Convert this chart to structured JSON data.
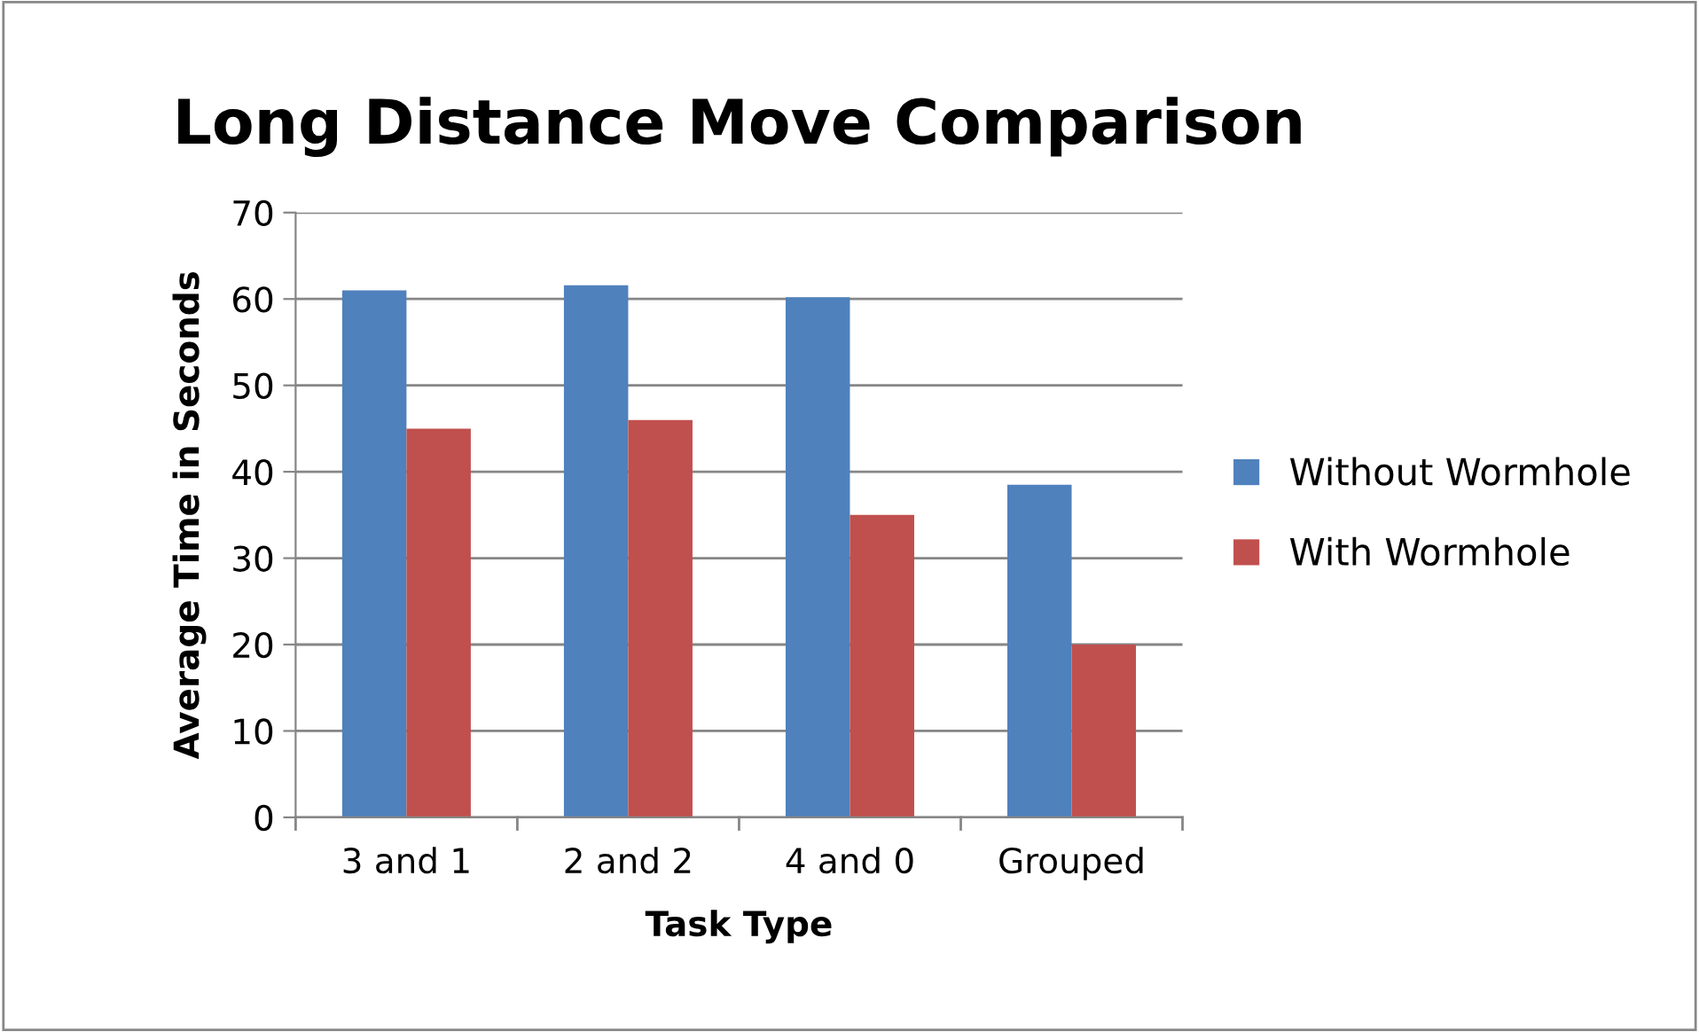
{
  "chart_data": {
    "type": "bar",
    "title": "Long Distance Move Comparison",
    "xlabel": "Task Type",
    "ylabel": "Average Time in Seconds",
    "categories": [
      "3 and 1",
      "2 and 2",
      "4 and 0",
      "Grouped"
    ],
    "series": [
      {
        "name": "Without Wormhole",
        "color": "#4f81bd",
        "values": [
          61,
          61.6,
          60.2,
          38.5
        ]
      },
      {
        "name": "With Wormhole",
        "color": "#c0504d",
        "values": [
          45,
          46,
          35,
          20
        ]
      }
    ],
    "ylim": [
      0,
      70
    ],
    "yticks": [
      0,
      10,
      20,
      30,
      40,
      50,
      60,
      70
    ],
    "grid": "y",
    "legend": "right"
  }
}
